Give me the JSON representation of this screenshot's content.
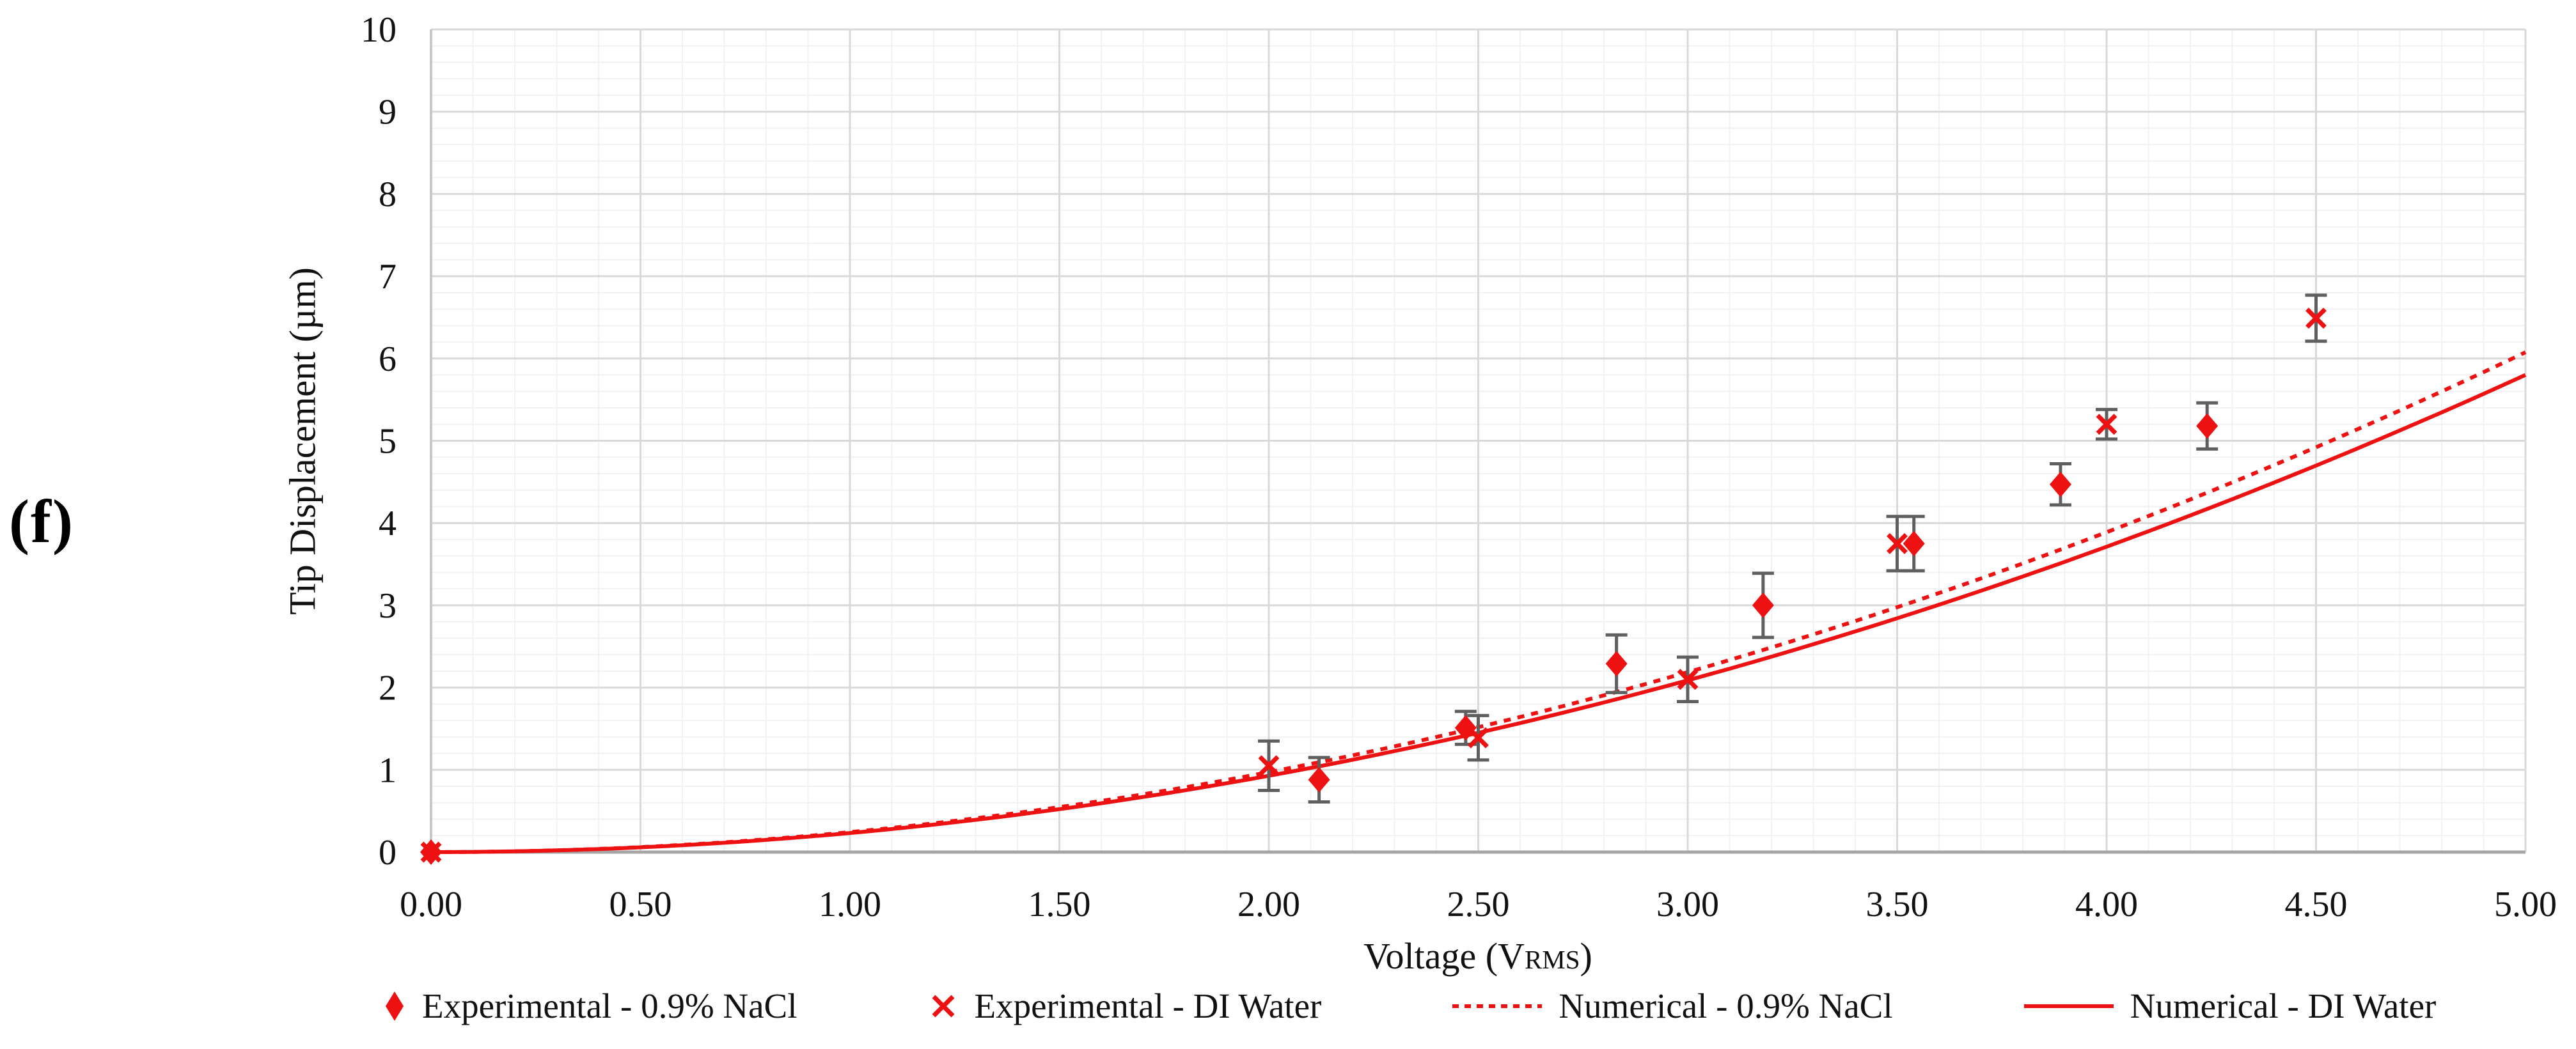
{
  "panel_label": "(f)",
  "chart_data": {
    "type": "scatter",
    "title": "",
    "ylabel": "Tip Displacement (µm)",
    "xlabel_parts": {
      "main": "Voltage (V",
      "sub": "RMS",
      "end": ")"
    },
    "xlim": [
      0,
      5
    ],
    "ylim": [
      0,
      10
    ],
    "x_major_step": 0.5,
    "x_minor_step": 0.1,
    "y_major_step": 1,
    "y_minor_step": 0.2,
    "x_tick_labels": [
      "0.00",
      "0.50",
      "1.00",
      "1.50",
      "2.00",
      "2.50",
      "3.00",
      "3.50",
      "4.00",
      "4.50",
      "5.00"
    ],
    "y_tick_labels": [
      "0",
      "1",
      "2",
      "3",
      "4",
      "5",
      "6",
      "7",
      "8",
      "9",
      "10"
    ],
    "grid": true,
    "legend_position": "bottom",
    "accent_color": "#ED1111",
    "error_bar_color": "#5f5f5f",
    "major_grid_color": "#d9d9d9",
    "minor_grid_color": "#f2f2f2",
    "axis_line_color": "#a6a6a6",
    "y_axis_line_color": "#c8c8c8",
    "text_color": "#111111",
    "series": [
      {
        "name": "Experimental - 0.9% NaCl",
        "kind": "scatter",
        "marker": "diamond",
        "color": "#ED1111",
        "x": [
          0,
          2.12,
          2.47,
          2.83,
          3.18,
          3.54,
          3.89,
          4.24
        ],
        "y": [
          0,
          0.88,
          1.51,
          2.29,
          3.0,
          3.75,
          4.47,
          5.18
        ],
        "yerr": [
          0,
          0.27,
          0.2,
          0.35,
          0.39,
          0.33,
          0.25,
          0.28
        ]
      },
      {
        "name": "Experimental - DI Water",
        "kind": "scatter",
        "marker": "x",
        "color": "#ED1111",
        "x": [
          0,
          2.0,
          2.5,
          3.0,
          3.5,
          4.0,
          4.5
        ],
        "y": [
          0,
          1.05,
          1.39,
          2.1,
          3.75,
          5.2,
          6.49
        ],
        "yerr": [
          0,
          0.3,
          0.27,
          0.27,
          0.33,
          0.18,
          0.28
        ]
      },
      {
        "name": "Numerical - 0.9% NaCl",
        "kind": "curve",
        "line_style": "dashed",
        "color": "#ED1111",
        "model": "y = a * V^2",
        "a": 0.243,
        "exponent": 2,
        "value_at_x5": 6.08
      },
      {
        "name": "Numerical - DI Water",
        "kind": "curve",
        "line_style": "solid",
        "color": "#ED1111",
        "model": "y = a * V^2",
        "a": 0.232,
        "exponent": 2,
        "value_at_x5": 5.8
      }
    ]
  }
}
